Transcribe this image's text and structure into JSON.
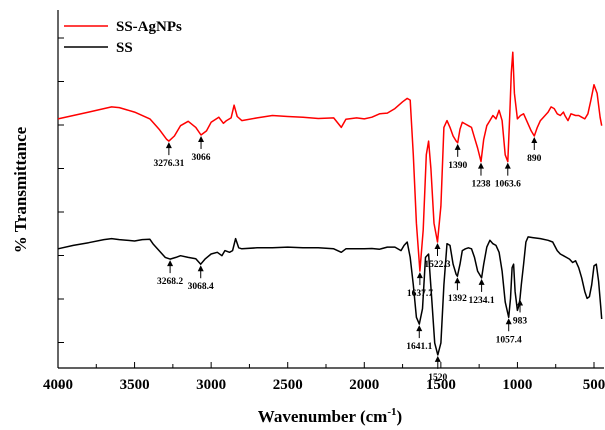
{
  "chart_data": {
    "type": "line",
    "xlabel": "Wavenumber (cm",
    "xlabel_sup": "-1",
    "xlabel_end": ")",
    "ylabel": "% Transmittance",
    "xlim": [
      4000,
      450
    ],
    "x_reversed": true,
    "x_ticks": [
      4000,
      3500,
      3000,
      2500,
      2000,
      1500,
      1000,
      500
    ],
    "x_tick_labels": [
      "4000",
      "3500",
      "3000",
      "2500",
      "2000",
      "1500",
      "1000",
      "500"
    ],
    "ylim": [
      0,
      100
    ],
    "y_tick_labels_shown": false,
    "grid": false,
    "legend_position": "top-left",
    "series": [
      {
        "name": "SS-AgNPs",
        "color": "#ff0000",
        "points": [
          [
            4000,
            70.5
          ],
          [
            3900,
            71.5
          ],
          [
            3800,
            72.5
          ],
          [
            3700,
            73.5
          ],
          [
            3650,
            74.0
          ],
          [
            3600,
            73.8
          ],
          [
            3500,
            72.5
          ],
          [
            3400,
            70.5
          ],
          [
            3340,
            67.5
          ],
          [
            3290,
            64.5
          ],
          [
            3276,
            64.0
          ],
          [
            3240,
            65.5
          ],
          [
            3200,
            68.5
          ],
          [
            3150,
            69.8
          ],
          [
            3100,
            68.0
          ],
          [
            3066,
            65.8
          ],
          [
            3030,
            67.0
          ],
          [
            3000,
            69.5
          ],
          [
            2950,
            71.0
          ],
          [
            2920,
            69.2
          ],
          [
            2900,
            70.0
          ],
          [
            2870,
            70.8
          ],
          [
            2850,
            74.5
          ],
          [
            2830,
            71.2
          ],
          [
            2800,
            70.0
          ],
          [
            2700,
            70.8
          ],
          [
            2600,
            71.5
          ],
          [
            2500,
            71.2
          ],
          [
            2400,
            71.0
          ],
          [
            2300,
            70.6
          ],
          [
            2200,
            70.8
          ],
          [
            2150,
            68.0
          ],
          [
            2120,
            70.4
          ],
          [
            2050,
            70.8
          ],
          [
            2000,
            70.5
          ],
          [
            1950,
            71.0
          ],
          [
            1900,
            72.0
          ],
          [
            1850,
            72.2
          ],
          [
            1800,
            73.5
          ],
          [
            1750,
            75.5
          ],
          [
            1720,
            76.5
          ],
          [
            1700,
            76.0
          ],
          [
            1680,
            60.0
          ],
          [
            1660,
            40.0
          ],
          [
            1637,
            26.0
          ],
          [
            1615,
            38.0
          ],
          [
            1595,
            60.0
          ],
          [
            1580,
            64.0
          ],
          [
            1565,
            56.0
          ],
          [
            1545,
            40.0
          ],
          [
            1522,
            34.5
          ],
          [
            1500,
            45.0
          ],
          [
            1480,
            68.0
          ],
          [
            1460,
            70.0
          ],
          [
            1440,
            68.0
          ],
          [
            1420,
            65.5
          ],
          [
            1400,
            64.0
          ],
          [
            1390,
            63.5
          ],
          [
            1375,
            67.5
          ],
          [
            1360,
            69.5
          ],
          [
            1340,
            69.0
          ],
          [
            1320,
            68.5
          ],
          [
            1300,
            68.0
          ],
          [
            1280,
            65.0
          ],
          [
            1260,
            62.0
          ],
          [
            1238,
            58.0
          ],
          [
            1220,
            64.5
          ],
          [
            1200,
            68.5
          ],
          [
            1180,
            70.0
          ],
          [
            1160,
            71.5
          ],
          [
            1140,
            70.5
          ],
          [
            1120,
            73.0
          ],
          [
            1100,
            70.0
          ],
          [
            1080,
            60.0
          ],
          [
            1063,
            58.0
          ],
          [
            1050,
            72.0
          ],
          [
            1040,
            84.0
          ],
          [
            1030,
            90.0
          ],
          [
            1020,
            78.0
          ],
          [
            1000,
            70.5
          ],
          [
            980,
            71.5
          ],
          [
            960,
            72.0
          ],
          [
            940,
            70.0
          ],
          [
            910,
            67.0
          ],
          [
            890,
            65.5
          ],
          [
            870,
            68.0
          ],
          [
            850,
            70.0
          ],
          [
            830,
            71.0
          ],
          [
            800,
            72.5
          ],
          [
            780,
            74.0
          ],
          [
            760,
            73.5
          ],
          [
            740,
            72.0
          ],
          [
            720,
            71.5
          ],
          [
            700,
            72.5
          ],
          [
            690,
            71.5
          ],
          [
            670,
            70.0
          ],
          [
            650,
            72.0
          ],
          [
            620,
            71.5
          ],
          [
            600,
            71.5
          ],
          [
            580,
            71.0
          ],
          [
            560,
            70.5
          ],
          [
            540,
            72.0
          ],
          [
            520,
            76.0
          ],
          [
            500,
            80.5
          ],
          [
            480,
            78.0
          ],
          [
            460,
            71.0
          ],
          [
            450,
            68.5
          ]
        ]
      },
      {
        "name": "SS",
        "color": "#000000",
        "points": [
          [
            4000,
            32.5
          ],
          [
            3900,
            33.5
          ],
          [
            3800,
            34.3
          ],
          [
            3700,
            35.2
          ],
          [
            3650,
            35.5
          ],
          [
            3600,
            35.2
          ],
          [
            3500,
            34.8
          ],
          [
            3450,
            35.2
          ],
          [
            3400,
            35.3
          ],
          [
            3380,
            34.0
          ],
          [
            3340,
            32.0
          ],
          [
            3300,
            30.0
          ],
          [
            3268,
            29.5
          ],
          [
            3230,
            30.0
          ],
          [
            3200,
            30.5
          ],
          [
            3150,
            30.0
          ],
          [
            3100,
            29.6
          ],
          [
            3068,
            28.0
          ],
          [
            3040,
            29.5
          ],
          [
            3000,
            31.0
          ],
          [
            2960,
            31.5
          ],
          [
            2930,
            30.5
          ],
          [
            2910,
            32.0
          ],
          [
            2880,
            31.5
          ],
          [
            2860,
            32.0
          ],
          [
            2840,
            35.5
          ],
          [
            2820,
            32.8
          ],
          [
            2800,
            32.5
          ],
          [
            2700,
            32.8
          ],
          [
            2600,
            32.8
          ],
          [
            2500,
            33.0
          ],
          [
            2400,
            32.8
          ],
          [
            2300,
            32.8
          ],
          [
            2200,
            32.5
          ],
          [
            2150,
            31.5
          ],
          [
            2120,
            32.5
          ],
          [
            2050,
            32.5
          ],
          [
            2000,
            32.5
          ],
          [
            1950,
            32.6
          ],
          [
            1900,
            32.4
          ],
          [
            1850,
            33.0
          ],
          [
            1800,
            33.0
          ],
          [
            1760,
            32.0
          ],
          [
            1740,
            33.5
          ],
          [
            1720,
            34.5
          ],
          [
            1700,
            30.0
          ],
          [
            1680,
            22.0
          ],
          [
            1660,
            12.5
          ],
          [
            1641,
            10.5
          ],
          [
            1620,
            15.0
          ],
          [
            1600,
            30.0
          ],
          [
            1580,
            31.0
          ],
          [
            1560,
            18.0
          ],
          [
            1540,
            5.0
          ],
          [
            1520,
            1.5
          ],
          [
            1500,
            5.0
          ],
          [
            1480,
            22.0
          ],
          [
            1460,
            34.0
          ],
          [
            1440,
            33.5
          ],
          [
            1420,
            28.0
          ],
          [
            1400,
            25.0
          ],
          [
            1392,
            24.5
          ],
          [
            1375,
            28.0
          ],
          [
            1360,
            32.0
          ],
          [
            1340,
            32.5
          ],
          [
            1320,
            32.8
          ],
          [
            1300,
            32.5
          ],
          [
            1280,
            30.0
          ],
          [
            1260,
            26.0
          ],
          [
            1234,
            24.0
          ],
          [
            1220,
            28.0
          ],
          [
            1200,
            33.0
          ],
          [
            1180,
            35.0
          ],
          [
            1160,
            34.0
          ],
          [
            1140,
            33.5
          ],
          [
            1120,
            31.5
          ],
          [
            1100,
            26.0
          ],
          [
            1080,
            17.0
          ],
          [
            1065,
            14.0
          ],
          [
            1057,
            12.5
          ],
          [
            1045,
            18.0
          ],
          [
            1035,
            27.0
          ],
          [
            1025,
            28.0
          ],
          [
            1015,
            20.0
          ],
          [
            1000,
            14.5
          ],
          [
            990,
            16.0
          ],
          [
            983,
            18.0
          ],
          [
            975,
            22.0
          ],
          [
            960,
            28.0
          ],
          [
            945,
            34.5
          ],
          [
            930,
            36.0
          ],
          [
            900,
            35.8
          ],
          [
            850,
            35.5
          ],
          [
            800,
            35.0
          ],
          [
            770,
            34.5
          ],
          [
            740,
            32.0
          ],
          [
            720,
            31.0
          ],
          [
            700,
            30.5
          ],
          [
            680,
            30.0
          ],
          [
            660,
            29.5
          ],
          [
            640,
            28.5
          ],
          [
            620,
            29.0
          ],
          [
            600,
            27.0
          ],
          [
            580,
            24.0
          ],
          [
            560,
            20.0
          ],
          [
            545,
            18.0
          ],
          [
            530,
            18.5
          ],
          [
            515,
            22.0
          ],
          [
            500,
            27.5
          ],
          [
            485,
            28.0
          ],
          [
            470,
            23.0
          ],
          [
            455,
            15.0
          ],
          [
            450,
            12.0
          ]
        ]
      }
    ],
    "annotations": [
      {
        "label": "3276.31",
        "x": 3276,
        "y": 64.0,
        "series": "SS-AgNPs"
      },
      {
        "label": "3066",
        "x": 3066,
        "y": 65.8,
        "series": "SS-AgNPs"
      },
      {
        "label": "1637.7",
        "x": 1637,
        "y": 26.0,
        "series": "SS-AgNPs"
      },
      {
        "label": "1522.3",
        "x": 1522,
        "y": 34.5,
        "series": "SS-AgNPs"
      },
      {
        "label": "1390",
        "x": 1390,
        "y": 63.5,
        "series": "SS-AgNPs"
      },
      {
        "label": "1238",
        "x": 1238,
        "y": 58.0,
        "series": "SS-AgNPs"
      },
      {
        "label": "1063.6",
        "x": 1063,
        "y": 58.0,
        "series": "SS-AgNPs"
      },
      {
        "label": "890",
        "x": 890,
        "y": 65.5,
        "series": "SS-AgNPs"
      },
      {
        "label": "3268.2",
        "x": 3268,
        "y": 29.5,
        "series": "SS"
      },
      {
        "label": "3068.4",
        "x": 3068,
        "y": 28.0,
        "series": "SS"
      },
      {
        "label": "1641.1",
        "x": 1641,
        "y": 10.5,
        "series": "SS"
      },
      {
        "label": "1520",
        "x": 1520,
        "y": 1.5,
        "series": "SS"
      },
      {
        "label": "1392",
        "x": 1392,
        "y": 24.5,
        "series": "SS"
      },
      {
        "label": "1234.1",
        "x": 1234,
        "y": 24.0,
        "series": "SS"
      },
      {
        "label": "1057.4",
        "x": 1057,
        "y": 12.5,
        "series": "SS"
      },
      {
        "label": "983",
        "x": 983,
        "y": 18.0,
        "series": "SS"
      }
    ]
  }
}
